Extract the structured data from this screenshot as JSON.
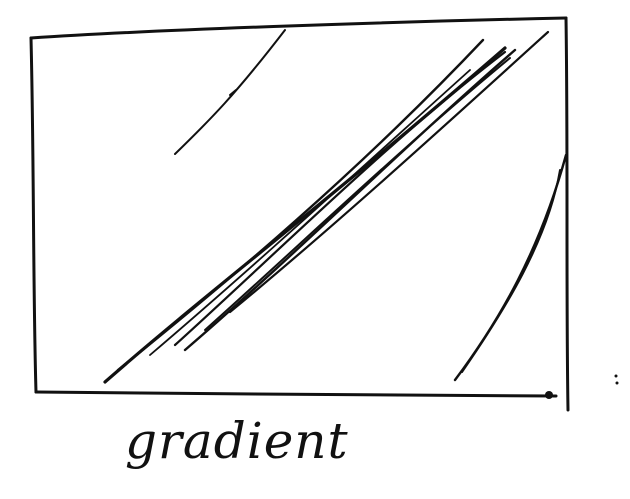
{
  "caption": "gradient",
  "ink_color": "#111111",
  "paper_color": "#ffffff"
}
